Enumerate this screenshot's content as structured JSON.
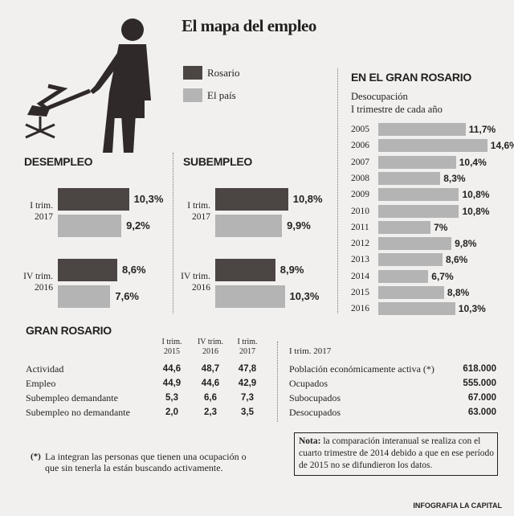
{
  "title": "El mapa del empleo",
  "chart_data": [
    {
      "type": "bar",
      "title": "DESEMPLEO",
      "categories": [
        "I trim. 2017",
        "IV trim. 2016"
      ],
      "series": [
        {
          "name": "Rosario",
          "color": "#4b4544",
          "values": [
            10.3,
            8.6
          ],
          "value_labels": [
            "10,3%",
            "8,6%"
          ]
        },
        {
          "name": "El país",
          "color": "#b4b4b4",
          "values": [
            9.2,
            7.6
          ],
          "value_labels": [
            "9,2%",
            "7,6%"
          ]
        }
      ]
    },
    {
      "type": "bar",
      "title": "SUBEMPLEO",
      "categories": [
        "I trim. 2017",
        "IV trim. 2016"
      ],
      "series": [
        {
          "color": "#4b4544",
          "values": [
            10.8,
            8.9
          ],
          "value_labels": [
            "10,8%",
            "8,9%"
          ]
        },
        {
          "color": "#b4b4b4",
          "values": [
            9.9,
            10.3
          ],
          "value_labels": [
            "9,9%",
            "10,3%"
          ]
        }
      ]
    },
    {
      "type": "bar",
      "title": "EN EL GRAN ROSARIO",
      "subtitle": "Desocupación\nI trimestre de cada año",
      "categories": [
        "2005",
        "2006",
        "2007",
        "2008",
        "2009",
        "2010",
        "2011",
        "2012",
        "2013",
        "2014",
        "2015",
        "2016"
      ],
      "series": [
        {
          "color": "#b4b4b4",
          "values": [
            11.7,
            14.6,
            10.4,
            8.3,
            10.8,
            10.8,
            7,
            9.8,
            8.6,
            6.7,
            8.8,
            10.3
          ],
          "value_labels": [
            "11,7%",
            "14,6%",
            "10,4%",
            "8,3%",
            "10,8%",
            "10,8%",
            "7%",
            "9,8%",
            "8,6%",
            "6,7%",
            "8,8%",
            "10,3%"
          ]
        }
      ]
    }
  ],
  "rates_table": {
    "title": "GRAN ROSARIO",
    "header": [
      "I trim. 2015",
      "IV trim. 2016",
      "I trim. 2017"
    ],
    "rows": [
      [
        "Actividad",
        "44,6",
        "48,7",
        "47,8"
      ],
      [
        "Empleo",
        "44,9",
        "44,6",
        "42,9"
      ],
      [
        "Subempleo demandante",
        "5,3",
        "6,6",
        "7,3"
      ],
      [
        "Subempleo no demandante",
        "2,0",
        "2,3",
        "3,5"
      ]
    ]
  },
  "count_table": {
    "header": "I trim. 2017",
    "rows": [
      [
        "Población económicamente activa (*)",
        "618.000"
      ],
      [
        "Ocupados",
        "555.000"
      ],
      [
        "Subocupados",
        "67.000"
      ],
      [
        "Desocupados",
        "63.000"
      ]
    ]
  },
  "footnote": {
    "mark": "(*)",
    "text": "La integran las personas que tienen una ocupación o que sin tenerla la están buscando activamente."
  },
  "note": {
    "label": "Nota:",
    "text": "la comparación interanual se realiza con el cuarto trimestre de 2014 debido a que en ese período de 2015 no se difundieron los datos."
  },
  "credit": "INFOGRAFIA LA CAPITAL"
}
